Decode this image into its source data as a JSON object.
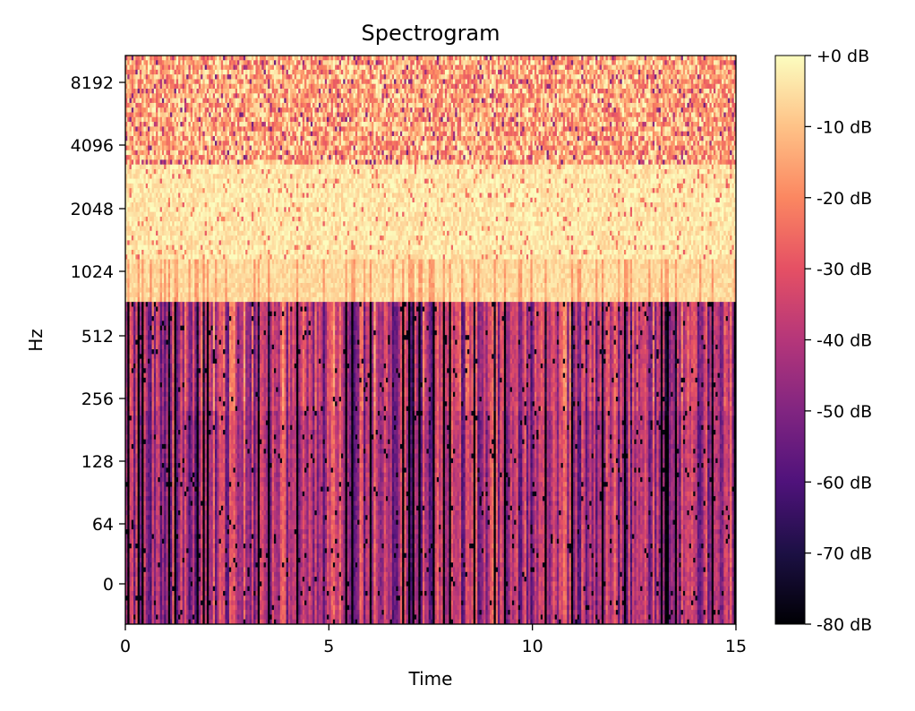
{
  "chart_data": {
    "type": "heatmap",
    "title": "Spectrogram",
    "xlabel": "Time",
    "ylabel": "Hz",
    "xlim": [
      0,
      15
    ],
    "x_ticks": [
      0,
      5,
      10,
      15
    ],
    "x_tick_labels": [
      "0",
      "5",
      "10",
      "15"
    ],
    "y_scale": "log2",
    "y_ticks": [
      0,
      64,
      128,
      256,
      512,
      1024,
      2048,
      4096,
      8192
    ],
    "y_tick_labels": [
      "0",
      "64",
      "128",
      "256",
      "512",
      "1024",
      "2048",
      "4096",
      "8192"
    ],
    "colormap": "magma",
    "colorbar": {
      "range": [
        -80,
        0
      ],
      "unit": "dB",
      "ticks": [
        0,
        -10,
        -20,
        -30,
        -40,
        -50,
        -60,
        -70,
        -80
      ],
      "tick_labels": [
        "+0 dB",
        "-10 dB",
        "-20 dB",
        "-30 dB",
        "-40 dB",
        "-50 dB",
        "-60 dB",
        "-70 dB",
        "-80 dB"
      ]
    },
    "grid": false,
    "bands": [
      {
        "freq_range": "above ~4096 Hz",
        "level_db": [
          -35,
          0
        ],
        "description": "mixed"
      },
      {
        "freq_range": "~1024–4096 Hz",
        "level_db": [
          -10,
          0
        ],
        "description": "high"
      },
      {
        "freq_range": "below ~750 Hz",
        "level_db": [
          -80,
          -25
        ],
        "description": "vertical streaks"
      }
    ]
  }
}
